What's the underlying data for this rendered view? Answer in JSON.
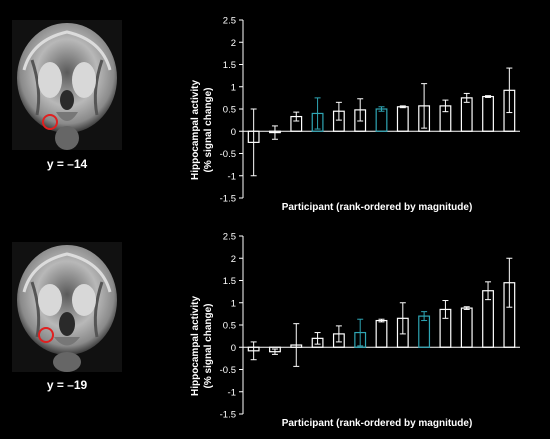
{
  "brain_panels": [
    {
      "label": "y = –14"
    },
    {
      "label": "y = –19"
    }
  ],
  "colors": {
    "background": "#000000",
    "bar_default": "#ffffff",
    "bar_highlight": "#2fa6b5",
    "roi_circle": "#e02020"
  },
  "chart_data": [
    {
      "type": "bar",
      "ylabel_line1": "Hippocampal activity",
      "ylabel_line2": "(% signal change)",
      "xlabel": "Participant (rank-ordered by magnitude)",
      "ylim": [
        -1.5,
        2.5
      ],
      "yticks": [
        "2.5",
        "2",
        "1.5",
        "1",
        "0.5",
        "0",
        "-0.5",
        "-1",
        "-1.5"
      ],
      "ytick_values": [
        2.5,
        2,
        1.5,
        1,
        0.5,
        0,
        -0.5,
        -1,
        -1.5
      ],
      "values": [
        -0.25,
        -0.03,
        0.33,
        0.4,
        0.45,
        0.48,
        0.5,
        0.55,
        0.57,
        0.57,
        0.75,
        0.78,
        0.92
      ],
      "errors": [
        0.75,
        0.15,
        0.1,
        0.35,
        0.2,
        0.25,
        0.05,
        0.02,
        0.5,
        0.13,
        0.1,
        0.02,
        0.5
      ],
      "highlighted": [
        false,
        false,
        false,
        true,
        false,
        false,
        true,
        false,
        false,
        false,
        false,
        false,
        false
      ]
    },
    {
      "type": "bar",
      "ylabel_line1": "Hippocampal activity",
      "ylabel_line2": "(% signal change)",
      "xlabel": "Participant (rank-ordered by magnitude)",
      "ylim": [
        -1.5,
        2.5
      ],
      "yticks": [
        "2.5",
        "2",
        "1.5",
        "1",
        "0.5",
        "0",
        "-0.5",
        "-1",
        "-1.5"
      ],
      "ytick_values": [
        2.5,
        2,
        1.5,
        1,
        0.5,
        0,
        -0.5,
        -1,
        -1.5
      ],
      "values": [
        -0.08,
        -0.1,
        0.05,
        0.2,
        0.3,
        0.33,
        0.6,
        0.65,
        0.7,
        0.85,
        0.88,
        1.27,
        1.45
      ],
      "errors": [
        0.2,
        0.06,
        0.48,
        0.13,
        0.18,
        0.3,
        0.03,
        0.35,
        0.1,
        0.2,
        0.03,
        0.2,
        0.55
      ],
      "highlighted": [
        false,
        false,
        false,
        false,
        false,
        true,
        false,
        false,
        true,
        false,
        false,
        false,
        false
      ]
    }
  ]
}
